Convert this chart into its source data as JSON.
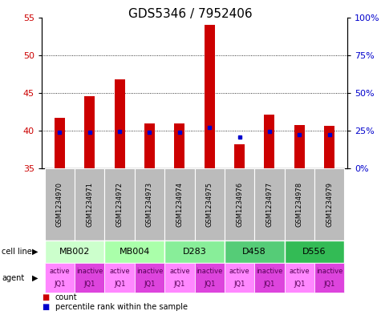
{
  "title": "GDS5346 / 7952406",
  "samples": [
    "GSM1234970",
    "GSM1234971",
    "GSM1234972",
    "GSM1234973",
    "GSM1234974",
    "GSM1234975",
    "GSM1234976",
    "GSM1234977",
    "GSM1234978",
    "GSM1234979"
  ],
  "counts": [
    41.7,
    44.6,
    46.8,
    41.0,
    41.0,
    54.0,
    38.2,
    42.1,
    40.7,
    40.6
  ],
  "base_value": 35.0,
  "percentile_ranks": [
    39.8,
    39.8,
    39.9,
    39.8,
    39.8,
    40.4,
    39.1,
    39.9,
    39.5,
    39.5
  ],
  "ylim_left": [
    35,
    55
  ],
  "ylim_right": [
    0,
    100
  ],
  "yticks_left": [
    35,
    40,
    45,
    50,
    55
  ],
  "yticks_right": [
    0,
    25,
    50,
    75,
    100
  ],
  "ytick_labels_right": [
    "0%",
    "25%",
    "50%",
    "75%",
    "100%"
  ],
  "bar_color": "#cc0000",
  "dot_color": "#0000cc",
  "grid_yticks": [
    40,
    45,
    50
  ],
  "cell_lines": [
    {
      "label": "MB002",
      "cols": [
        0,
        1
      ],
      "color": "#ccffcc"
    },
    {
      "label": "MB004",
      "cols": [
        2,
        3
      ],
      "color": "#aaffaa"
    },
    {
      "label": "D283",
      "cols": [
        4,
        5
      ],
      "color": "#88ee99"
    },
    {
      "label": "D458",
      "cols": [
        6,
        7
      ],
      "color": "#55cc77"
    },
    {
      "label": "D556",
      "cols": [
        8,
        9
      ],
      "color": "#33bb55"
    }
  ],
  "agents": [
    "active",
    "inactive",
    "active",
    "inactive",
    "active",
    "inactive",
    "active",
    "inactive",
    "active",
    "inactive"
  ],
  "agent_active_color": "#ff88ff",
  "agent_inactive_color": "#dd44dd",
  "legend_bar_color": "#cc0000",
  "legend_dot_color": "#0000cc",
  "background_color": "#ffffff",
  "sample_bg_color": "#bbbbbb",
  "bar_width": 0.35,
  "title_fontsize": 11,
  "tick_fontsize": 8,
  "label_fontsize": 8,
  "sample_fontsize": 6,
  "cell_fontsize": 8,
  "agent_fontsize": 6
}
